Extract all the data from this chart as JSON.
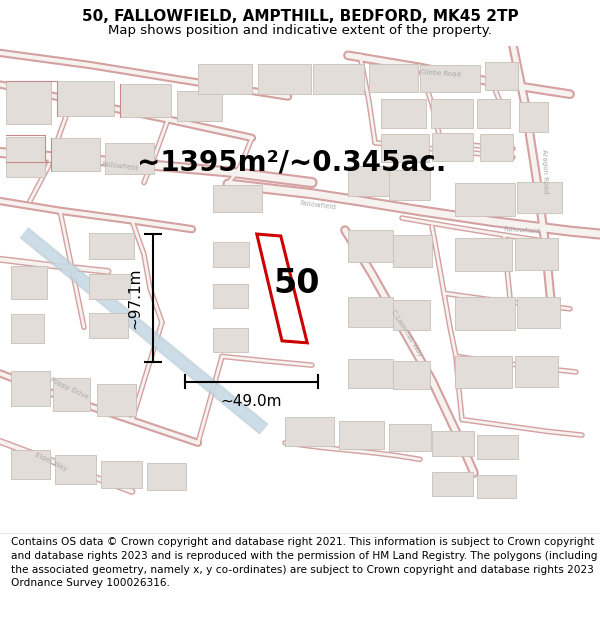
{
  "title": "50, FALLOWFIELD, AMPTHILL, BEDFORD, MK45 2TP",
  "subtitle": "Map shows position and indicative extent of the property.",
  "area_text": "~1395m²/~0.345ac.",
  "label_50": "50",
  "dim_height": "~97.1m",
  "dim_width": "~49.0m",
  "footer": "Contains OS data © Crown copyright and database right 2021. This information is subject to Crown copyright and database rights 2023 and is reproduced with the permission of HM Land Registry. The polygons (including the associated geometry, namely x, y co-ordinates) are subject to Crown copyright and database rights 2023 Ordnance Survey 100026316.",
  "map_bg": "#f0eeeb",
  "road_outline": "#d4a0a0",
  "road_fill": "#f5f2ef",
  "building_fill": "#e2ddd8",
  "building_edge": "#c8c0b8",
  "building_edge2": "#d4a0a0",
  "highlight_color": "#cc0000",
  "text_color": "#000000",
  "gray_text": "#aaaaaa",
  "path_color": "#c8d8e4",
  "title_fontsize": 11,
  "subtitle_fontsize": 9.5,
  "area_fontsize": 20,
  "label_fontsize": 24,
  "dim_fontsize": 11,
  "footer_fontsize": 7.6
}
